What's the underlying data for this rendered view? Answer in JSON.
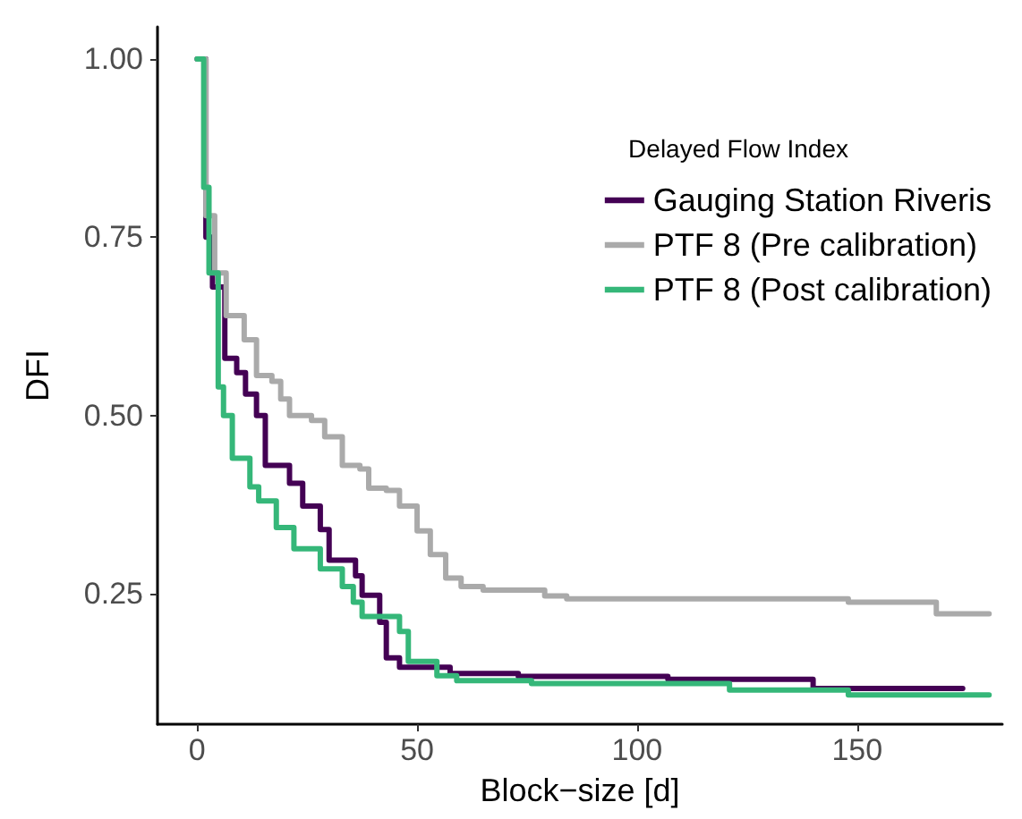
{
  "chart_data": {
    "type": "step",
    "xlabel": "Block−size [d]",
    "ylabel": "DFI",
    "legend_title": "Delayed Flow Index",
    "legend": "top right",
    "grid": false,
    "marker": "none",
    "line_style": "solid",
    "xlim": [
      -9,
      183
    ],
    "xticks": [
      0,
      50,
      100,
      150
    ],
    "ylim": [
      0.067,
      1.045
    ],
    "yticks": [
      0.25,
      {
        "value": 0.5,
        "label": "0.50"
      },
      0.75,
      {
        "value": 1,
        "label": "1.00"
      }
    ],
    "series": [
      {
        "name": "Gauging Station Riveris",
        "color": "#440154",
        "x": [
          0,
          2,
          3.5,
          6.3,
          9,
          11,
          13.5,
          15.5,
          21,
          24,
          28,
          30,
          36,
          37.5,
          41.5,
          43,
          46,
          57.5,
          73,
          107,
          140,
          174
        ],
        "values": [
          1,
          0.75,
          0.68,
          0.58,
          0.56,
          0.53,
          0.5,
          0.43,
          0.405,
          0.373,
          0.34,
          0.297,
          0.275,
          0.248,
          0.21,
          0.16,
          0.147,
          0.138,
          0.134,
          0.13,
          0.117,
          0.117
        ]
      },
      {
        "name": "PTF 8 (Pre calibration)",
        "color": "#aaaaaa",
        "x": [
          0,
          2,
          4,
          6.6,
          10.7,
          13.5,
          17,
          19,
          21,
          26,
          29,
          33,
          37,
          39,
          43,
          46,
          50,
          53,
          56.5,
          60,
          65,
          79,
          84,
          148,
          163,
          168,
          180
        ],
        "values": [
          1,
          0.78,
          0.7,
          0.64,
          0.606,
          0.556,
          0.548,
          0.523,
          0.5,
          0.493,
          0.47,
          0.43,
          0.425,
          0.398,
          0.395,
          0.373,
          0.338,
          0.305,
          0.272,
          0.26,
          0.255,
          0.247,
          0.243,
          0.238,
          0.238,
          0.222,
          0.222
        ]
      },
      {
        "name": "PTF 8 (Post calibration)",
        "color": "#35b779",
        "x": [
          0,
          1.5,
          2.7,
          4.8,
          6,
          8,
          12,
          14,
          18,
          22,
          28,
          33,
          35.5,
          37.5,
          46,
          48,
          54.5,
          59,
          76,
          121,
          148,
          180
        ],
        "values": [
          1,
          0.82,
          0.7,
          0.54,
          0.5,
          0.44,
          0.4,
          0.38,
          0.343,
          0.313,
          0.285,
          0.26,
          0.238,
          0.218,
          0.197,
          0.155,
          0.135,
          0.128,
          0.124,
          0.115,
          0.108,
          0.108
        ]
      }
    ]
  }
}
